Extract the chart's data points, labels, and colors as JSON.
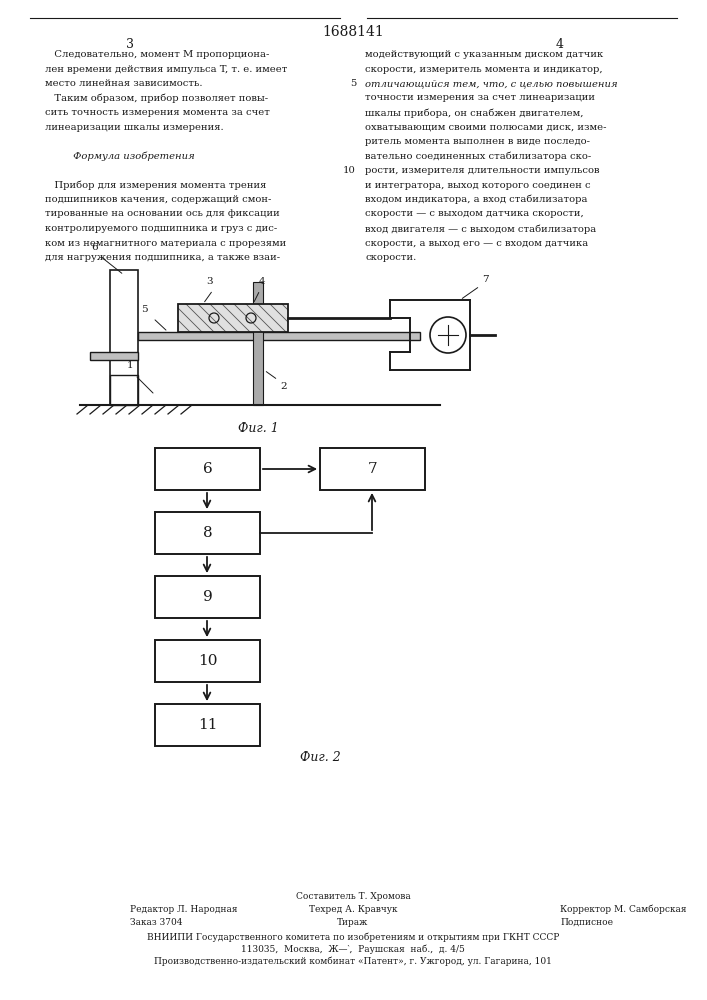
{
  "title_number": "1688141",
  "page_numbers": [
    "3",
    "4"
  ],
  "bg_color": "#ffffff",
  "text_color": "#1a1a1a",
  "left_col_text": [
    "   Следовательно, момент M пропорциона-",
    "лен времени действия импульса T, т. е. имеет",
    "место линейная зависимость.",
    "   Таким образом, прибор позволяет повы-",
    "сить точность измерения момента за счет",
    "линеаризации шкалы измерения.",
    "",
    "         Формула изобретения",
    "",
    "   Прибор для измерения момента трения",
    "подшипников качения, содержащий смон-",
    "тированные на основании ось для фиксации",
    "контролируемого подшипника и груз с дис-",
    "ком из немагнитного материала с прорезями",
    "для нагружения подшипника, а также взаи-"
  ],
  "right_col_text": [
    "модействующий с указанным диском датчик",
    "скорости, измеритель момента и индикатор,",
    "отличающийся тем, что, с целью повышения",
    "точности измерения за счет линеаризации",
    "шкалы прибора, он снабжен двигателем,",
    "охватывающим своими полюсами диск, изме-",
    "ритель момента выполнен в виде последо-",
    "вательно соединенных стабилизатора ско-",
    "рости, измерителя длительности импульсов",
    "и интегратора, выход которого соединен с",
    "входом индикатора, а вход стабилизатора",
    "скорости — с выходом датчика скорости,",
    "вход двигателя — с выходом стабилизатора",
    "скорости, а выход его — с входом датчика",
    "скорости."
  ],
  "fig1_caption": "Фиг. 1",
  "fig2_caption": "Фиг. 2",
  "footer_lines": [
    "Составитель Т. Хромова",
    "Редактор Л. Народная",
    "Техред А. Кравчук",
    "Корректор М. Самборская",
    "Заказ 3704",
    "Тираж",
    "Подписное",
    "ВНИИПИ Государственного комитета по изобретениям и открытиям при ГКНТ СССР",
    "113035,  Москва,  Ж—‵,  Раушская  наб.,  д. 4/5",
    "Производственно-издательский комбинат «Патент», г. Ужгород, ул. Гагарина, 101"
  ]
}
